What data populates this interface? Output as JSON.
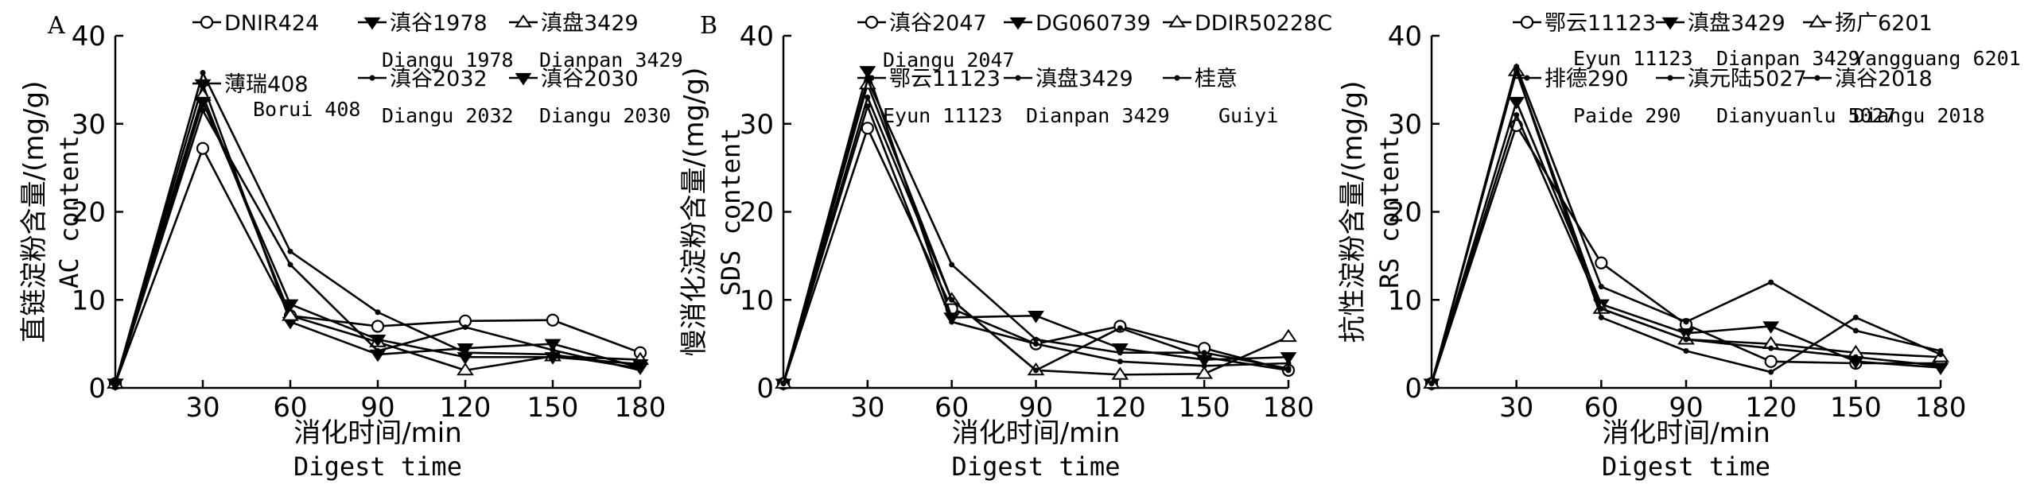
{
  "chart_data": [
    {
      "type": "line",
      "panel_label": "A",
      "x": [
        0,
        30,
        60,
        90,
        120,
        150,
        180
      ],
      "xticks": [
        30,
        60,
        90,
        120,
        150,
        180
      ],
      "yticks": [
        0,
        10,
        20,
        30,
        40
      ],
      "xlim": [
        0,
        180
      ],
      "ylim": [
        0,
        40
      ],
      "xlabel_cn": "消化时间/min",
      "xlabel_en": "Digest time",
      "ylabel_cn": "直链淀粉含量/(mg/g)",
      "ylabel_en": "AC content",
      "series": [
        {
          "name": "DNIR424",
          "name_en": "",
          "marker": "circle",
          "values": [
            0.5,
            27.2,
            8.2,
            7.0,
            7.6,
            7.7,
            4.0
          ]
        },
        {
          "name": "滇谷1978",
          "name_en": "Diangu 1978",
          "marker": "tri-down",
          "values": [
            0.5,
            34.5,
            7.5,
            3.8,
            4.5,
            5.0,
            2.3
          ]
        },
        {
          "name": "滇盘3429",
          "name_en": "Dianpan 3429",
          "marker": "tri-up",
          "values": [
            0.5,
            33.2,
            8.2,
            5.2,
            2.0,
            3.6,
            3.2
          ]
        },
        {
          "name": "薄瑞408",
          "name_en": "Borui 408",
          "marker": "dot",
          "values": [
            0.5,
            35.8,
            15.5,
            8.6,
            4.0,
            3.8,
            2.2
          ]
        },
        {
          "name": "滇谷2032",
          "name_en": "Diangu 2032",
          "marker": "dot",
          "values": [
            0.5,
            31.5,
            14.0,
            4.2,
            6.9,
            4.3,
            2.0
          ]
        },
        {
          "name": "滇谷2030",
          "name_en": "Diangu 2030",
          "marker": "tri-down",
          "values": [
            0.5,
            32.5,
            9.5,
            5.5,
            3.5,
            3.5,
            2.7
          ]
        }
      ]
    },
    {
      "type": "line",
      "panel_label": "B",
      "x": [
        0,
        30,
        60,
        90,
        120,
        150,
        180
      ],
      "xticks": [
        30,
        60,
        90,
        120,
        150,
        180
      ],
      "yticks": [
        0,
        10,
        20,
        30,
        40
      ],
      "xlim": [
        0,
        180
      ],
      "ylim": [
        0,
        40
      ],
      "xlabel_cn": "消化时间/min",
      "xlabel_en": "Digest time",
      "ylabel_cn": "慢消化淀粉含量/(mg/g)",
      "ylabel_en": "SDS content",
      "series": [
        {
          "name": "滇谷2047",
          "name_en": "Diangu 2047",
          "marker": "circle",
          "values": [
            0.5,
            29.5,
            9.0,
            5.0,
            7.0,
            4.5,
            2.0
          ]
        },
        {
          "name": "DG060739",
          "name_en": "",
          "marker": "tri-down",
          "values": [
            0.5,
            36.0,
            8.0,
            8.2,
            4.5,
            3.2,
            3.5
          ]
        },
        {
          "name": "DDIR50228C",
          "name_en": "",
          "marker": "tri-up",
          "values": [
            0.5,
            34.5,
            10.0,
            2.0,
            1.5,
            1.6,
            5.8
          ]
        },
        {
          "name": "鄂云11123",
          "name_en": "Eyun 11123",
          "marker": "dot",
          "values": [
            0.5,
            35.0,
            14.0,
            5.5,
            4.0,
            4.0,
            2.2
          ]
        },
        {
          "name": "滇盘3429",
          "name_en": "Dianpan 3429",
          "marker": "dot",
          "values": [
            0.5,
            33.0,
            10.0,
            2.0,
            6.8,
            3.5,
            2.0
          ]
        },
        {
          "name": "桂意",
          "name_en": "Guiyi",
          "marker": "dot",
          "values": [
            0.5,
            32.0,
            7.5,
            5.0,
            3.0,
            2.5,
            2.8
          ]
        }
      ]
    },
    {
      "type": "line",
      "panel_label": "",
      "x": [
        0,
        30,
        60,
        90,
        120,
        150,
        180
      ],
      "xticks": [
        30,
        60,
        90,
        120,
        150,
        180
      ],
      "yticks": [
        0,
        10,
        20,
        30,
        40
      ],
      "xlim": [
        0,
        180
      ],
      "ylim": [
        0,
        40
      ],
      "xlabel_cn": "消化时间/min",
      "xlabel_en": "Digest time",
      "ylabel_cn": "抗性淀粉含量/(mg/g)",
      "ylabel_en": "RS content",
      "series": [
        {
          "name": "鄂云11123",
          "name_en": "Eyun 11123",
          "marker": "circle",
          "values": [
            0.5,
            29.8,
            14.2,
            7.2,
            3.0,
            2.8,
            2.8
          ]
        },
        {
          "name": "滇盘3429",
          "name_en": "Dianpan 3429",
          "marker": "tri-down",
          "values": [
            0.5,
            32.5,
            9.5,
            6.2,
            7.0,
            3.0,
            2.3
          ]
        },
        {
          "name": "扬广6201",
          "name_en": "Yangguang 6201",
          "marker": "tri-up",
          "values": [
            0.5,
            36.0,
            9.0,
            5.5,
            5.0,
            4.0,
            3.5
          ]
        },
        {
          "name": "排德290",
          "name_en": "Paide 290",
          "marker": "dot",
          "values": [
            0.5,
            36.5,
            11.5,
            7.5,
            12.0,
            6.5,
            4.2
          ]
        },
        {
          "name": "滇元陆5027",
          "name_en": "Dianyuanlu 5027",
          "marker": "dot",
          "values": [
            0.5,
            36.0,
            8.0,
            4.2,
            1.8,
            8.0,
            3.8
          ]
        },
        {
          "name": "滇谷2018",
          "name_en": "Diangu 2018",
          "marker": "dot",
          "values": [
            0.5,
            31.0,
            9.0,
            5.5,
            4.5,
            3.5,
            2.5
          ]
        }
      ]
    }
  ]
}
